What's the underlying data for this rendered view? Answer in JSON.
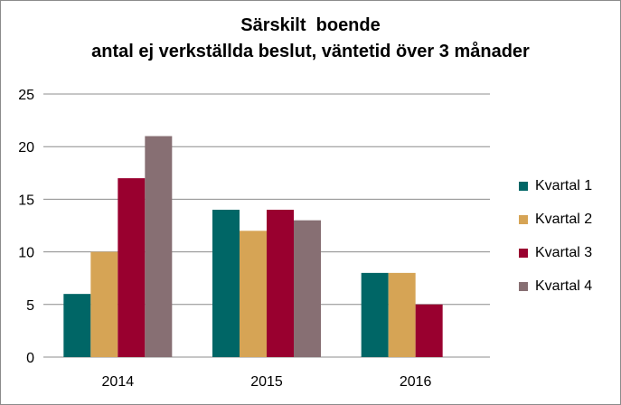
{
  "chart_data": {
    "type": "bar",
    "title": [
      "Särskilt  boende",
      "antal ej verkställda beslut, väntetid över 3 månader"
    ],
    "xlabel": "",
    "ylabel": "",
    "categories": [
      "2014",
      "2015",
      "2016"
    ],
    "ylim": [
      0,
      25
    ],
    "yticks": [
      0,
      5,
      10,
      15,
      20,
      25
    ],
    "grid": true,
    "legend_position": "right",
    "series": [
      {
        "name": "Kvartal 1",
        "color": "#006666",
        "values": [
          6,
          14,
          8
        ]
      },
      {
        "name": "Kvartal 2",
        "color": "#d6a455",
        "values": [
          10,
          12,
          8
        ]
      },
      {
        "name": "Kvartal 3",
        "color": "#99002f",
        "values": [
          17,
          14,
          5
        ]
      },
      {
        "name": "Kvartal 4",
        "color": "#876f73",
        "values": [
          21,
          13,
          null
        ]
      }
    ]
  }
}
